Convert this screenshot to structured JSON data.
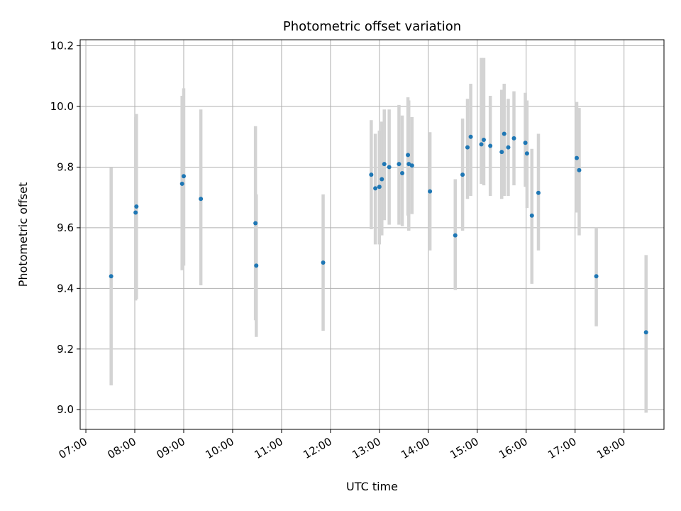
{
  "chart_data": {
    "type": "scatter",
    "title": "Photometric offset variation",
    "xlabel": "UTC time",
    "ylabel": "Photometric offset",
    "xlim": [
      "06:53",
      "18:49"
    ],
    "ylim": [
      8.935,
      10.22
    ],
    "x_ticks": [
      "07:00",
      "08:00",
      "09:00",
      "10:00",
      "11:00",
      "12:00",
      "13:00",
      "14:00",
      "15:00",
      "16:00",
      "17:00",
      "18:00"
    ],
    "y_ticks": [
      9.0,
      9.2,
      9.4,
      9.6,
      9.8,
      10.0,
      10.2
    ],
    "y_tick_labels": [
      "9.0",
      "9.2",
      "9.4",
      "9.6",
      "9.8",
      "10.0",
      "10.2"
    ],
    "grid": true,
    "error_bar_color": "#d3d3d3",
    "point_color": "#1f77b4",
    "points": [
      {
        "x": "07:31",
        "y": 9.44,
        "ylow": 9.08,
        "yhigh": 9.8
      },
      {
        "x": "08:01",
        "y": 9.65,
        "ylow": 9.36,
        "yhigh": 9.965
      },
      {
        "x": "08:02",
        "y": 9.67,
        "ylow": 9.365,
        "yhigh": 9.975
      },
      {
        "x": "08:58",
        "y": 9.745,
        "ylow": 9.46,
        "yhigh": 10.035
      },
      {
        "x": "09:00",
        "y": 9.77,
        "ylow": 9.475,
        "yhigh": 10.06
      },
      {
        "x": "09:21",
        "y": 9.695,
        "ylow": 9.41,
        "yhigh": 9.99
      },
      {
        "x": "10:28",
        "y": 9.615,
        "ylow": 9.295,
        "yhigh": 9.935
      },
      {
        "x": "10:29",
        "y": 9.475,
        "ylow": 9.24,
        "yhigh": 9.71
      },
      {
        "x": "11:51",
        "y": 9.485,
        "ylow": 9.26,
        "yhigh": 9.71
      },
      {
        "x": "12:50",
        "y": 9.775,
        "ylow": 9.595,
        "yhigh": 9.955
      },
      {
        "x": "12:55",
        "y": 9.73,
        "ylow": 9.545,
        "yhigh": 9.91
      },
      {
        "x": "13:00",
        "y": 9.735,
        "ylow": 9.545,
        "yhigh": 9.92
      },
      {
        "x": "13:03",
        "y": 9.76,
        "ylow": 9.575,
        "yhigh": 9.95
      },
      {
        "x": "13:06",
        "y": 9.81,
        "ylow": 9.625,
        "yhigh": 9.99
      },
      {
        "x": "13:12",
        "y": 9.8,
        "ylow": 9.61,
        "yhigh": 9.99
      },
      {
        "x": "13:24",
        "y": 9.81,
        "ylow": 9.61,
        "yhigh": 10.005
      },
      {
        "x": "13:28",
        "y": 9.78,
        "ylow": 9.605,
        "yhigh": 9.97
      },
      {
        "x": "13:35",
        "y": 9.84,
        "ylow": 9.64,
        "yhigh": 10.03
      },
      {
        "x": "13:36",
        "y": 9.81,
        "ylow": 9.59,
        "yhigh": 10.02
      },
      {
        "x": "13:40",
        "y": 9.805,
        "ylow": 9.645,
        "yhigh": 9.965
      },
      {
        "x": "14:02",
        "y": 9.72,
        "ylow": 9.525,
        "yhigh": 9.915
      },
      {
        "x": "14:33",
        "y": 9.575,
        "ylow": 9.395,
        "yhigh": 9.76
      },
      {
        "x": "14:42",
        "y": 9.775,
        "ylow": 9.59,
        "yhigh": 9.96
      },
      {
        "x": "14:48",
        "y": 9.865,
        "ylow": 9.695,
        "yhigh": 10.025
      },
      {
        "x": "14:52",
        "y": 9.9,
        "ylow": 9.705,
        "yhigh": 10.075
      },
      {
        "x": "15:05",
        "y": 9.875,
        "ylow": 9.745,
        "yhigh": 10.16
      },
      {
        "x": "15:08",
        "y": 9.89,
        "ylow": 9.74,
        "yhigh": 10.16
      },
      {
        "x": "15:16",
        "y": 9.87,
        "ylow": 9.705,
        "yhigh": 10.035
      },
      {
        "x": "15:30",
        "y": 9.85,
        "ylow": 9.695,
        "yhigh": 10.055
      },
      {
        "x": "15:33",
        "y": 9.91,
        "ylow": 9.705,
        "yhigh": 10.075
      },
      {
        "x": "15:38",
        "y": 9.865,
        "ylow": 9.705,
        "yhigh": 10.025
      },
      {
        "x": "15:45",
        "y": 9.895,
        "ylow": 9.74,
        "yhigh": 10.05
      },
      {
        "x": "15:59",
        "y": 9.88,
        "ylow": 9.735,
        "yhigh": 10.045
      },
      {
        "x": "16:01",
        "y": 9.845,
        "ylow": 9.665,
        "yhigh": 10.02
      },
      {
        "x": "16:07",
        "y": 9.64,
        "ylow": 9.415,
        "yhigh": 9.86
      },
      {
        "x": "16:15",
        "y": 9.715,
        "ylow": 9.525,
        "yhigh": 9.91
      },
      {
        "x": "17:02",
        "y": 9.83,
        "ylow": 9.65,
        "yhigh": 10.015
      },
      {
        "x": "17:05",
        "y": 9.79,
        "ylow": 9.575,
        "yhigh": 9.995
      },
      {
        "x": "17:26",
        "y": 9.44,
        "ylow": 9.275,
        "yhigh": 9.6
      },
      {
        "x": "18:27",
        "y": 9.255,
        "ylow": 8.99,
        "yhigh": 9.51
      }
    ]
  }
}
